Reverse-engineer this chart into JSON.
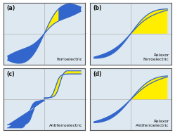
{
  "figsize": [
    2.49,
    1.89
  ],
  "dpi": 100,
  "bg_color": "#ffffff",
  "panel_bg": "#dde8f0",
  "blue_color": "#3366cc",
  "yellow_color": "#ffee00",
  "grid_color": "#bbbbbb",
  "border_color": "#555555",
  "label_color": "#111111",
  "panels": [
    {
      "label": "(a)",
      "text": "Ferroelectric",
      "type": "ferroelectric"
    },
    {
      "label": "(b)",
      "text": "Relaxor\nFerroelectric",
      "type": "relaxor_ferro"
    },
    {
      "label": "(c)",
      "text": "Antiferroelectric",
      "type": "antiferroelectric"
    },
    {
      "label": "(d)",
      "text": "Relaxor\nAntiferroelectric",
      "type": "relaxor_antiferro"
    }
  ]
}
